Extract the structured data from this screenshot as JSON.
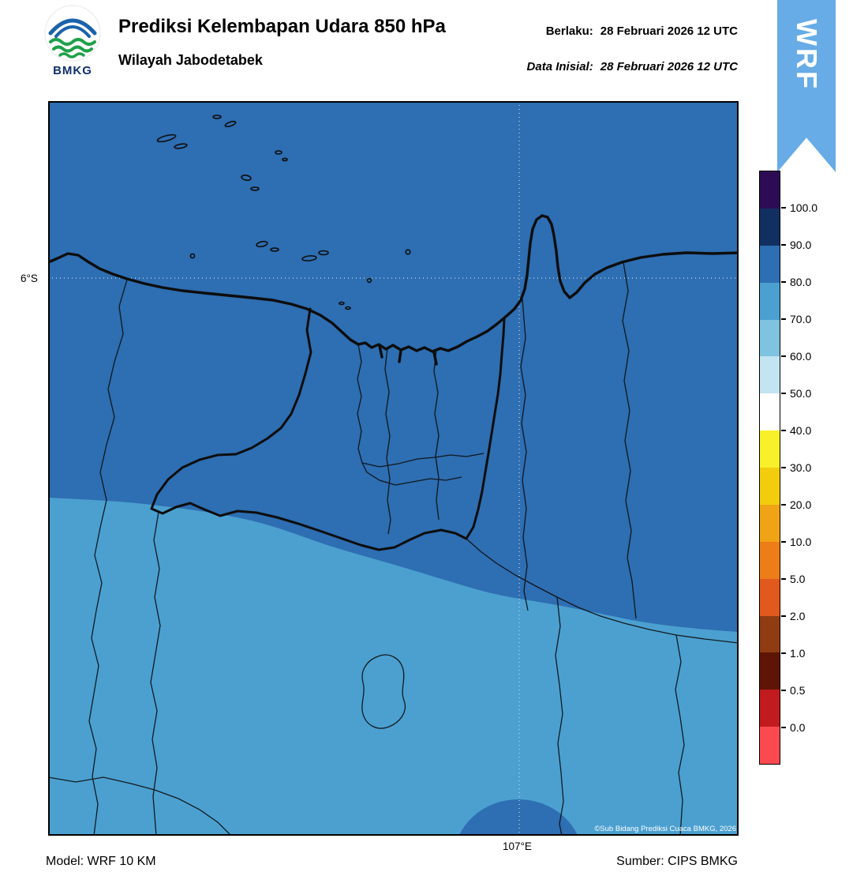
{
  "header": {
    "logo_label": "BMKG",
    "title": "Prediksi Kelembapan Udara 850 hPa",
    "subtitle": "Wilayah Jabodetabek",
    "berlaku_label": "Berlaku:",
    "berlaku_value": "28 Februari 2026 12 UTC",
    "inisial_label": "Data Inisial:",
    "inisial_value": "28 Februari 2026 12 UTC"
  },
  "ribbon": {
    "label": "WRF",
    "color": "#67ace6"
  },
  "map": {
    "lat_tick": "6°S",
    "lon_tick": "107°E",
    "copyright": "©Sub Bidang Prediksi Cuaca BMKG, 2026",
    "fill_80_90": "#2e6eb2",
    "fill_70_80": "#4ba0d0",
    "boundary_color": "#0d0d0d",
    "grid_color": "#c3d9ea",
    "regions": [
      {
        "area": "northern half (Jakarta, Tangerang, Bekasi, coast)",
        "humidity_range": "80-90"
      },
      {
        "area": "southern half (Bogor and surroundings)",
        "humidity_range": "70-80"
      },
      {
        "area": "small lobe at bottom-center near 107E",
        "humidity_range": "80-90"
      }
    ]
  },
  "colorbar": {
    "tick_labels": [
      "100.0",
      "90.0",
      "80.0",
      "70.0",
      "60.0",
      "50.0",
      "40.0",
      "30.0",
      "20.0",
      "10.0",
      "5.0",
      "2.0",
      "1.0",
      "0.5",
      "0.0"
    ],
    "segment_colors": [
      "#2d0c55",
      "#122f61",
      "#2e6eb2",
      "#4ba0d0",
      "#7fc3e1",
      "#c3e4f1",
      "#ffffff",
      "#f7f02a",
      "#f2cd0e",
      "#f0a314",
      "#ec7d18",
      "#e2591d",
      "#8f3c13",
      "#5f1505",
      "#c11b20",
      "#fa4a50"
    ]
  },
  "footer": {
    "model": "Model: WRF 10 KM",
    "source": "Sumber: CIPS BMKG"
  }
}
